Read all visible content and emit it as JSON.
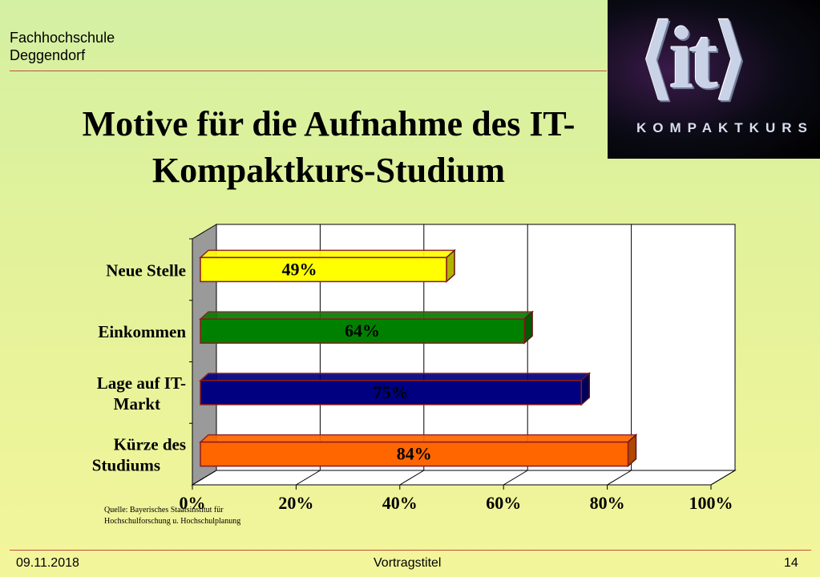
{
  "header": {
    "institution_line1": "Fachhochschule",
    "institution_line2": "Deggendorf"
  },
  "title": {
    "line1": "Motive für die Aufnahme des IT-",
    "line2": "Kompaktkurs-Studium"
  },
  "logo": {
    "word": "it",
    "subtitle": "KOMPAKTKURS"
  },
  "chart_data": {
    "type": "bar",
    "orientation": "horizontal",
    "categories": [
      [
        "Neue Stelle"
      ],
      [
        "Einkommen"
      ],
      [
        "Lage auf IT-",
        "Markt"
      ],
      [
        "Kürze des",
        "Studiums"
      ]
    ],
    "values": [
      49,
      64,
      75,
      84
    ],
    "data_labels": [
      "49%",
      "64%",
      "75%",
      "84%"
    ],
    "bar_colors": [
      "#ffff00",
      "#008000",
      "#000080",
      "#ff6600"
    ],
    "label_colors": [
      "#000000",
      "#000000",
      "#000000",
      "#000000"
    ],
    "xlim": [
      0,
      100
    ],
    "x_ticks": [
      "0%",
      "20%",
      "40%",
      "60%",
      "80%",
      "100%"
    ],
    "grid": true,
    "style": "3d"
  },
  "source": {
    "line1": "Quelle: Bayerisches Staatsinstitut für",
    "line2": "Hochschulforschung u. Hochschulplanung"
  },
  "footer": {
    "date": "09.11.2018",
    "center": "Vortragstitel",
    "page": "14"
  }
}
